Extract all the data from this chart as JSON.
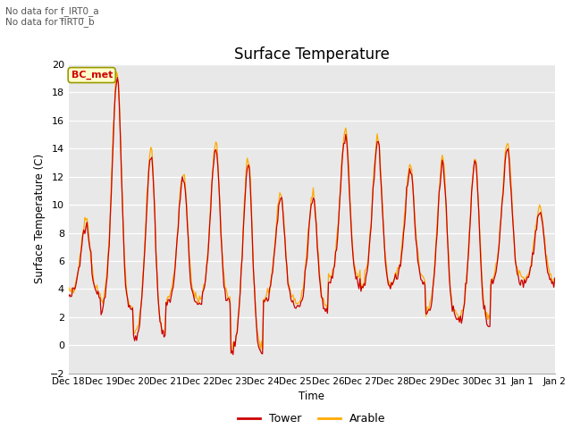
{
  "title": "Surface Temperature",
  "xlabel": "Time",
  "ylabel": "Surface Temperature (C)",
  "ylim": [
    -2,
    20
  ],
  "yticks": [
    -2,
    0,
    2,
    4,
    6,
    8,
    10,
    12,
    14,
    16,
    18,
    20
  ],
  "xtick_labels": [
    "Dec 18",
    "Dec 19",
    "Dec 20",
    "Dec 21",
    "Dec 22",
    "Dec 23",
    "Dec 24",
    "Dec 25",
    "Dec 26",
    "Dec 27",
    "Dec 28",
    "Dec 29",
    "Dec 30",
    "Dec 31",
    "Jan 1",
    "Jan 2"
  ],
  "tower_color": "#cc0000",
  "arable_color": "#ffaa00",
  "plot_bg_color": "#e8e8e8",
  "annotation_lines": [
    "No data for f_IRT0_a",
    "No data for f̅IRT0̅_b"
  ],
  "bc_met_label": "BC_met",
  "legend_tower": "Tower",
  "legend_arable": "Arable",
  "n_points": 480,
  "figsize": [
    6.4,
    4.8
  ],
  "dpi": 100
}
